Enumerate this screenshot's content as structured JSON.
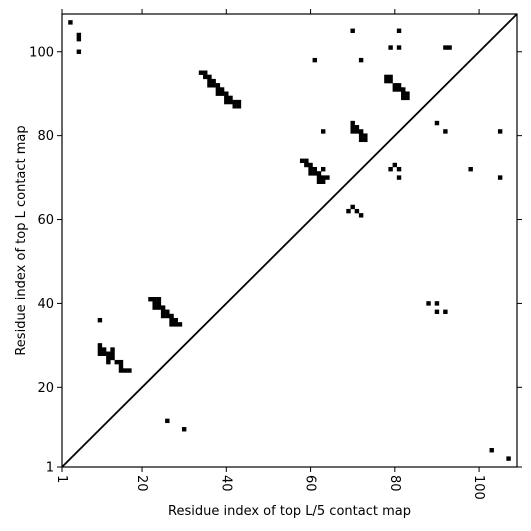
{
  "chart_data": {
    "type": "scatter",
    "title": "",
    "xlabel": "Residue index of top L/5 contact map",
    "ylabel": "Residue index of top L contact map",
    "xlim": [
      1,
      109
    ],
    "ylim": [
      1,
      109
    ],
    "xticks": [
      1,
      20,
      40,
      60,
      80,
      100
    ],
    "yticks": [
      1,
      20,
      40,
      60,
      80,
      100
    ],
    "x_tick_labels": [
      "1",
      "20",
      "40",
      "60",
      "80",
      "100"
    ],
    "y_tick_labels": [
      "1",
      "20",
      "40",
      "60",
      "80",
      "100"
    ],
    "x_tick_rotation_deg": 90,
    "grid": false,
    "marker": "square",
    "colors": {
      "points": "#000000",
      "diagonal": "#000000",
      "frame": "#000000"
    },
    "diagonal": {
      "from": [
        1,
        1
      ],
      "to": [
        109,
        109
      ]
    },
    "upper_left_contacts": [
      [
        3,
        107
      ],
      [
        5,
        104
      ],
      [
        5,
        103
      ],
      [
        5,
        100
      ],
      [
        61,
        98
      ],
      [
        72,
        98
      ],
      [
        70,
        105
      ],
      [
        81,
        105
      ],
      [
        79,
        101
      ],
      [
        81,
        101
      ],
      [
        92,
        101
      ],
      [
        93,
        101
      ],
      [
        34,
        95
      ],
      [
        35,
        95
      ],
      [
        35,
        94
      ],
      [
        36,
        94
      ],
      [
        36,
        93
      ],
      [
        37,
        93
      ],
      [
        36,
        92
      ],
      [
        37,
        92
      ],
      [
        38,
        92
      ],
      [
        38,
        91
      ],
      [
        39,
        91
      ],
      [
        38,
        90
      ],
      [
        39,
        90
      ],
      [
        40,
        90
      ],
      [
        40,
        89
      ],
      [
        41,
        89
      ],
      [
        40,
        88
      ],
      [
        41,
        88
      ],
      [
        42,
        88
      ],
      [
        42,
        87
      ],
      [
        43,
        87
      ],
      [
        43,
        88
      ],
      [
        78,
        94
      ],
      [
        79,
        94
      ],
      [
        78,
        93
      ],
      [
        79,
        93
      ],
      [
        80,
        92
      ],
      [
        81,
        92
      ],
      [
        80,
        91
      ],
      [
        81,
        91
      ],
      [
        82,
        91
      ],
      [
        82,
        90
      ],
      [
        83,
        90
      ],
      [
        82,
        89
      ],
      [
        83,
        89
      ],
      [
        63,
        81
      ],
      [
        70,
        83
      ],
      [
        70,
        82
      ],
      [
        71,
        82
      ],
      [
        70,
        81
      ],
      [
        71,
        81
      ],
      [
        72,
        81
      ],
      [
        72,
        80
      ],
      [
        73,
        80
      ],
      [
        72,
        79
      ],
      [
        73,
        79
      ],
      [
        90,
        83
      ],
      [
        92,
        81
      ],
      [
        105,
        81
      ],
      [
        58,
        74
      ],
      [
        59,
        74
      ],
      [
        59,
        73
      ],
      [
        60,
        73
      ],
      [
        60,
        72
      ],
      [
        61,
        72
      ],
      [
        60,
        71
      ],
      [
        61,
        71
      ],
      [
        62,
        71
      ],
      [
        63,
        72
      ],
      [
        62,
        70
      ],
      [
        63,
        70
      ],
      [
        64,
        70
      ],
      [
        62,
        69
      ],
      [
        63,
        69
      ],
      [
        79,
        72
      ],
      [
        80,
        73
      ],
      [
        81,
        72
      ],
      [
        81,
        70
      ],
      [
        98,
        72
      ],
      [
        105,
        70
      ],
      [
        69,
        62
      ],
      [
        70,
        63
      ],
      [
        71,
        62
      ],
      [
        72,
        61
      ]
    ],
    "lower_right_contacts": [
      [
        10,
        36
      ],
      [
        10,
        30
      ],
      [
        10,
        29
      ],
      [
        11,
        29
      ],
      [
        10,
        28
      ],
      [
        11,
        28
      ],
      [
        12,
        28
      ],
      [
        13,
        29
      ],
      [
        12,
        27
      ],
      [
        13,
        27
      ],
      [
        13,
        28
      ],
      [
        12,
        26
      ],
      [
        14,
        26
      ],
      [
        15,
        26
      ],
      [
        15,
        25
      ],
      [
        15,
        24
      ],
      [
        16,
        24
      ],
      [
        17,
        24
      ],
      [
        22,
        41
      ],
      [
        23,
        41
      ],
      [
        24,
        41
      ],
      [
        23,
        40
      ],
      [
        24,
        40
      ],
      [
        23,
        39
      ],
      [
        24,
        39
      ],
      [
        25,
        39
      ],
      [
        25,
        38
      ],
      [
        26,
        38
      ],
      [
        25,
        37
      ],
      [
        26,
        37
      ],
      [
        27,
        37
      ],
      [
        27,
        36
      ],
      [
        28,
        36
      ],
      [
        27,
        35
      ],
      [
        28,
        35
      ],
      [
        29,
        35
      ],
      [
        26,
        12
      ],
      [
        30,
        10
      ],
      [
        88,
        40
      ],
      [
        90,
        40
      ],
      [
        90,
        38
      ],
      [
        92,
        38
      ],
      [
        103,
        5
      ],
      [
        107,
        3
      ]
    ]
  }
}
